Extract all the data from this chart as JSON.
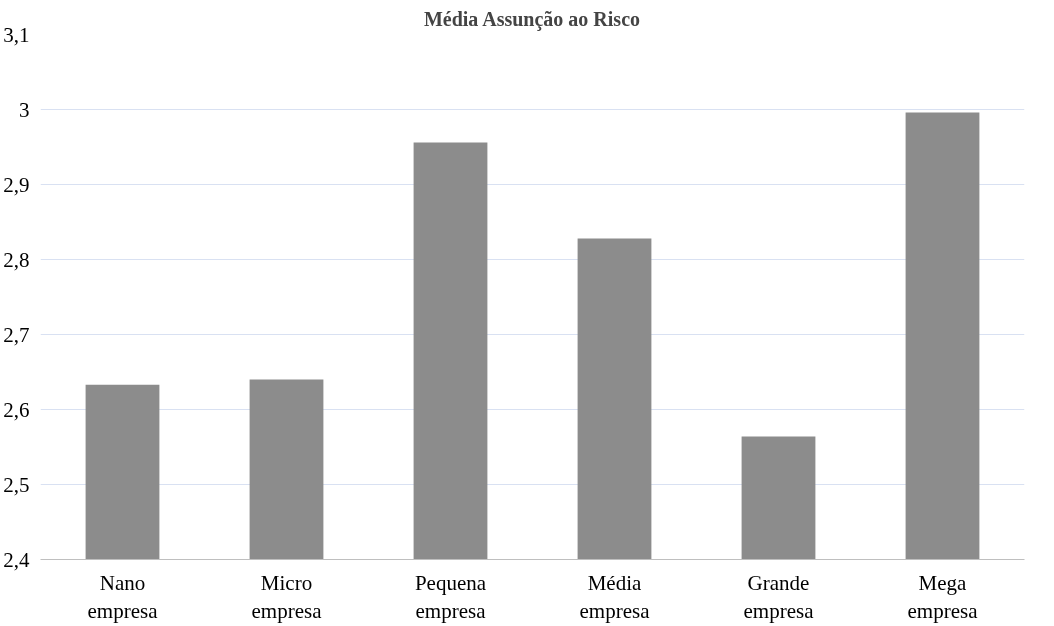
{
  "chart_data": {
    "type": "bar",
    "title": "Média Assunção ao Risco",
    "categories": [
      "Nano empresa",
      "Micro empresa",
      "Pequena empresa",
      "Média empresa",
      "Grande empresa",
      "Mega empresa"
    ],
    "values": [
      2.633,
      2.64,
      2.956,
      2.828,
      2.564,
      2.996
    ],
    "color": "#8c8c8c",
    "ylim": [
      2.4,
      3.1
    ],
    "yticks": [
      {
        "value": 2.4,
        "label": "2,4"
      },
      {
        "value": 2.5,
        "label": "2,5"
      },
      {
        "value": 2.6,
        "label": "2,6"
      },
      {
        "value": 2.7,
        "label": "2,7"
      },
      {
        "value": 2.8,
        "label": "2,8"
      },
      {
        "value": 2.9,
        "label": "2,9"
      },
      3,
      {
        "value": 3.1,
        "label": "3,1"
      }
    ],
    "grid": "y"
  }
}
